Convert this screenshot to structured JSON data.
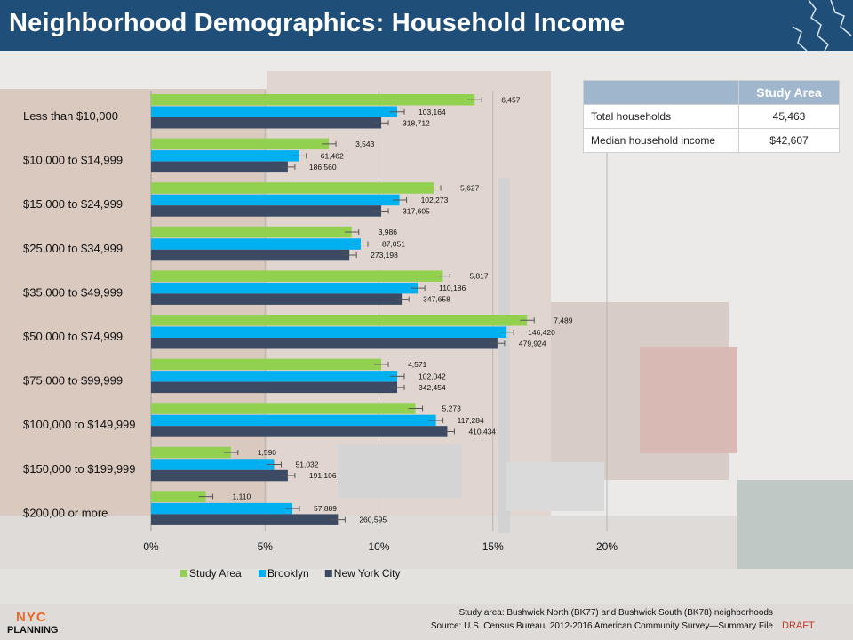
{
  "header": {
    "title": "Neighborhood Demographics:  Household Income"
  },
  "colors": {
    "study_area": "#92d050",
    "brooklyn": "#00b0f0",
    "nyc": "#3c4a63",
    "header_bg": "#1f4e79",
    "table_header": "#9fb6cc"
  },
  "chart_data": {
    "type": "bar",
    "orientation": "horizontal",
    "categories": [
      "Less than $10,000",
      "$10,000 to $14,999",
      "$15,000 to $24,999",
      "$25,000 to $34,999",
      "$35,000 to $49,999",
      "$50,000 to $74,999",
      "$75,000 to $99,999",
      "$100,000 to $149,999",
      "$150,000 to $199,999",
      "$200,00 or more"
    ],
    "x_ticks": [
      "0%",
      "5%",
      "10%",
      "15%",
      "20%"
    ],
    "xlim": [
      0,
      20
    ],
    "grid": true,
    "legend_position": "bottom",
    "series": [
      {
        "name": "Study Area",
        "color": "#92d050",
        "values": [
          14.2,
          7.8,
          12.4,
          8.8,
          12.8,
          16.5,
          10.1,
          11.6,
          3.5,
          2.4
        ],
        "labels": [
          "6,457",
          "3,543",
          "5,627",
          "3,986",
          "5,817",
          "7,489",
          "4,571",
          "5,273",
          "1,590",
          "1,110"
        ]
      },
      {
        "name": "Brooklyn",
        "color": "#00b0f0",
        "values": [
          10.8,
          6.5,
          10.9,
          9.2,
          11.7,
          15.6,
          10.8,
          12.5,
          5.4,
          6.2
        ],
        "labels": [
          "103,164",
          "61,462",
          "102,273",
          "87,051",
          "110,186",
          "146,420",
          "102,042",
          "117,284",
          "51,032",
          "57,889"
        ]
      },
      {
        "name": "New York City",
        "color": "#3c4a63",
        "values": [
          10.1,
          6.0,
          10.1,
          8.7,
          11.0,
          15.2,
          10.8,
          13.0,
          6.0,
          8.2
        ],
        "labels": [
          "318,712",
          "186,560",
          "317,605",
          "273,198",
          "347,658",
          "479,924",
          "342,454",
          "410,434",
          "191,106",
          "260,595"
        ]
      }
    ]
  },
  "summary_table": {
    "header": "Study Area",
    "rows": [
      {
        "label": "Total households",
        "value": "45,463"
      },
      {
        "label": "Median household income",
        "value": "$42,607"
      }
    ]
  },
  "footer": {
    "note1": "Study area: Bushwick North (BK77) and Bushwick South (BK78) neighborhoods",
    "note2": "Source: U.S. Census Bureau, 2012-2016 American Community Survey—Summary File",
    "draft": "DRAFT",
    "logo_top": "NYC",
    "logo_bottom": "PLANNING"
  }
}
